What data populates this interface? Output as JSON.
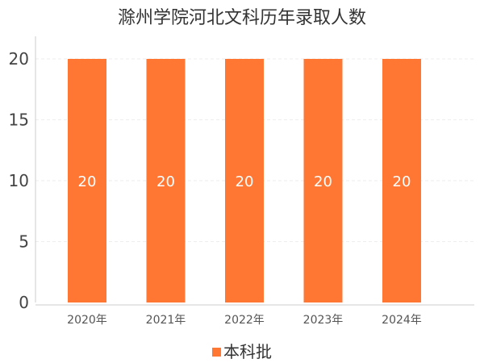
{
  "chart_data": {
    "type": "bar",
    "title": "滁州学院河北文科历年录取人数",
    "categories": [
      "2020年",
      "2021年",
      "2022年",
      "2023年",
      "2024年"
    ],
    "series": [
      {
        "name": "本科批",
        "values": [
          20,
          20,
          20,
          20,
          20
        ],
        "color": "#ff7733"
      }
    ],
    "ylim": [
      0,
      20
    ],
    "yticks": [
      0,
      5,
      10,
      15,
      20
    ],
    "grid": true,
    "data_labels": true,
    "legend_position": "bottom"
  }
}
